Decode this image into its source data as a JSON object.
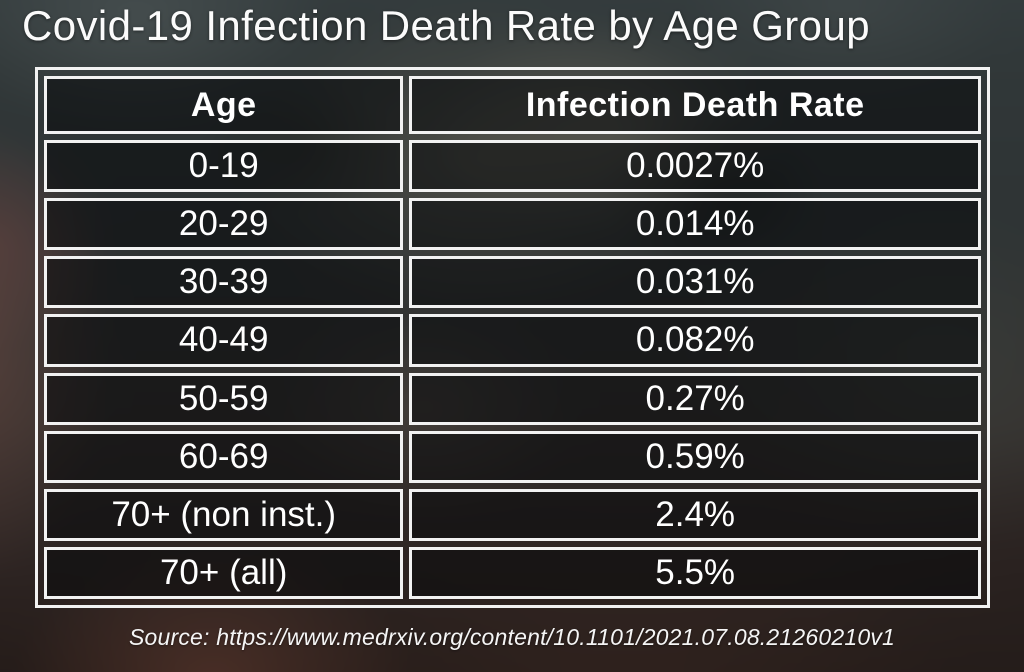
{
  "chart_data": {
    "type": "table",
    "title": "Covid-19 Infection Death Rate by Age Group",
    "columns": [
      "Age",
      "Infection Death Rate"
    ],
    "rows": [
      [
        "0-19",
        "0.0027%"
      ],
      [
        "20-29",
        "0.014%"
      ],
      [
        "30-39",
        "0.031%"
      ],
      [
        "40-49",
        "0.082%"
      ],
      [
        "50-59",
        "0.27%"
      ],
      [
        "60-69",
        "0.59%"
      ],
      [
        "70+ (non inst.)",
        "2.4%"
      ],
      [
        "70+ (all)",
        "5.5%"
      ]
    ],
    "source": "Source: https://www.medrxiv.org/content/10.1101/2021.07.08.21260210v1",
    "legend": false,
    "grid": true
  },
  "colors": {
    "text": "#ffffff",
    "table_border": "#f2f2f2",
    "cell_background": "rgba(9,10,12,0.58)",
    "background_top": "#353d3f",
    "background_bottom": "#231a17",
    "background_accent_brown": "#7d4a3c"
  }
}
